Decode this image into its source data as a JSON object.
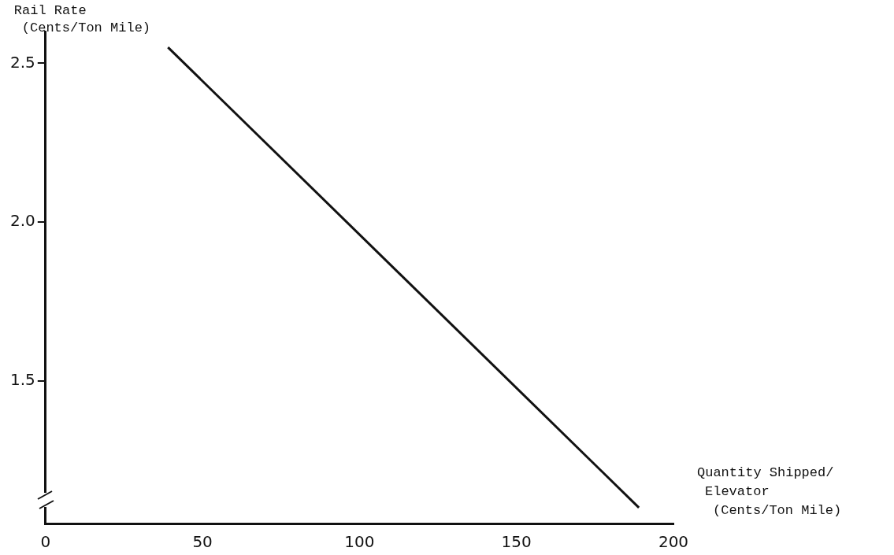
{
  "chart_data": {
    "type": "line",
    "xlabel": "Quantity Shipped/\nElevator\n(Cents/Ton Mile)",
    "ylabel": "Rail Rate\n(Cents/Ton Mile)",
    "series": [
      {
        "color": "#111111",
        "x": [
          39,
          189
        ],
        "values": [
          2.55,
          1.1
        ]
      }
    ],
    "xlim": [
      0,
      200
    ],
    "xticks": [
      0,
      50,
      100,
      150,
      200
    ],
    "ylim": [
      1.05,
      2.6
    ],
    "yticks": [
      1.5,
      {
        "value": 2,
        "label": "2.0"
      },
      2.5
    ],
    "grid": false,
    "legend": false,
    "marker": "none",
    "line_style": "solid"
  }
}
